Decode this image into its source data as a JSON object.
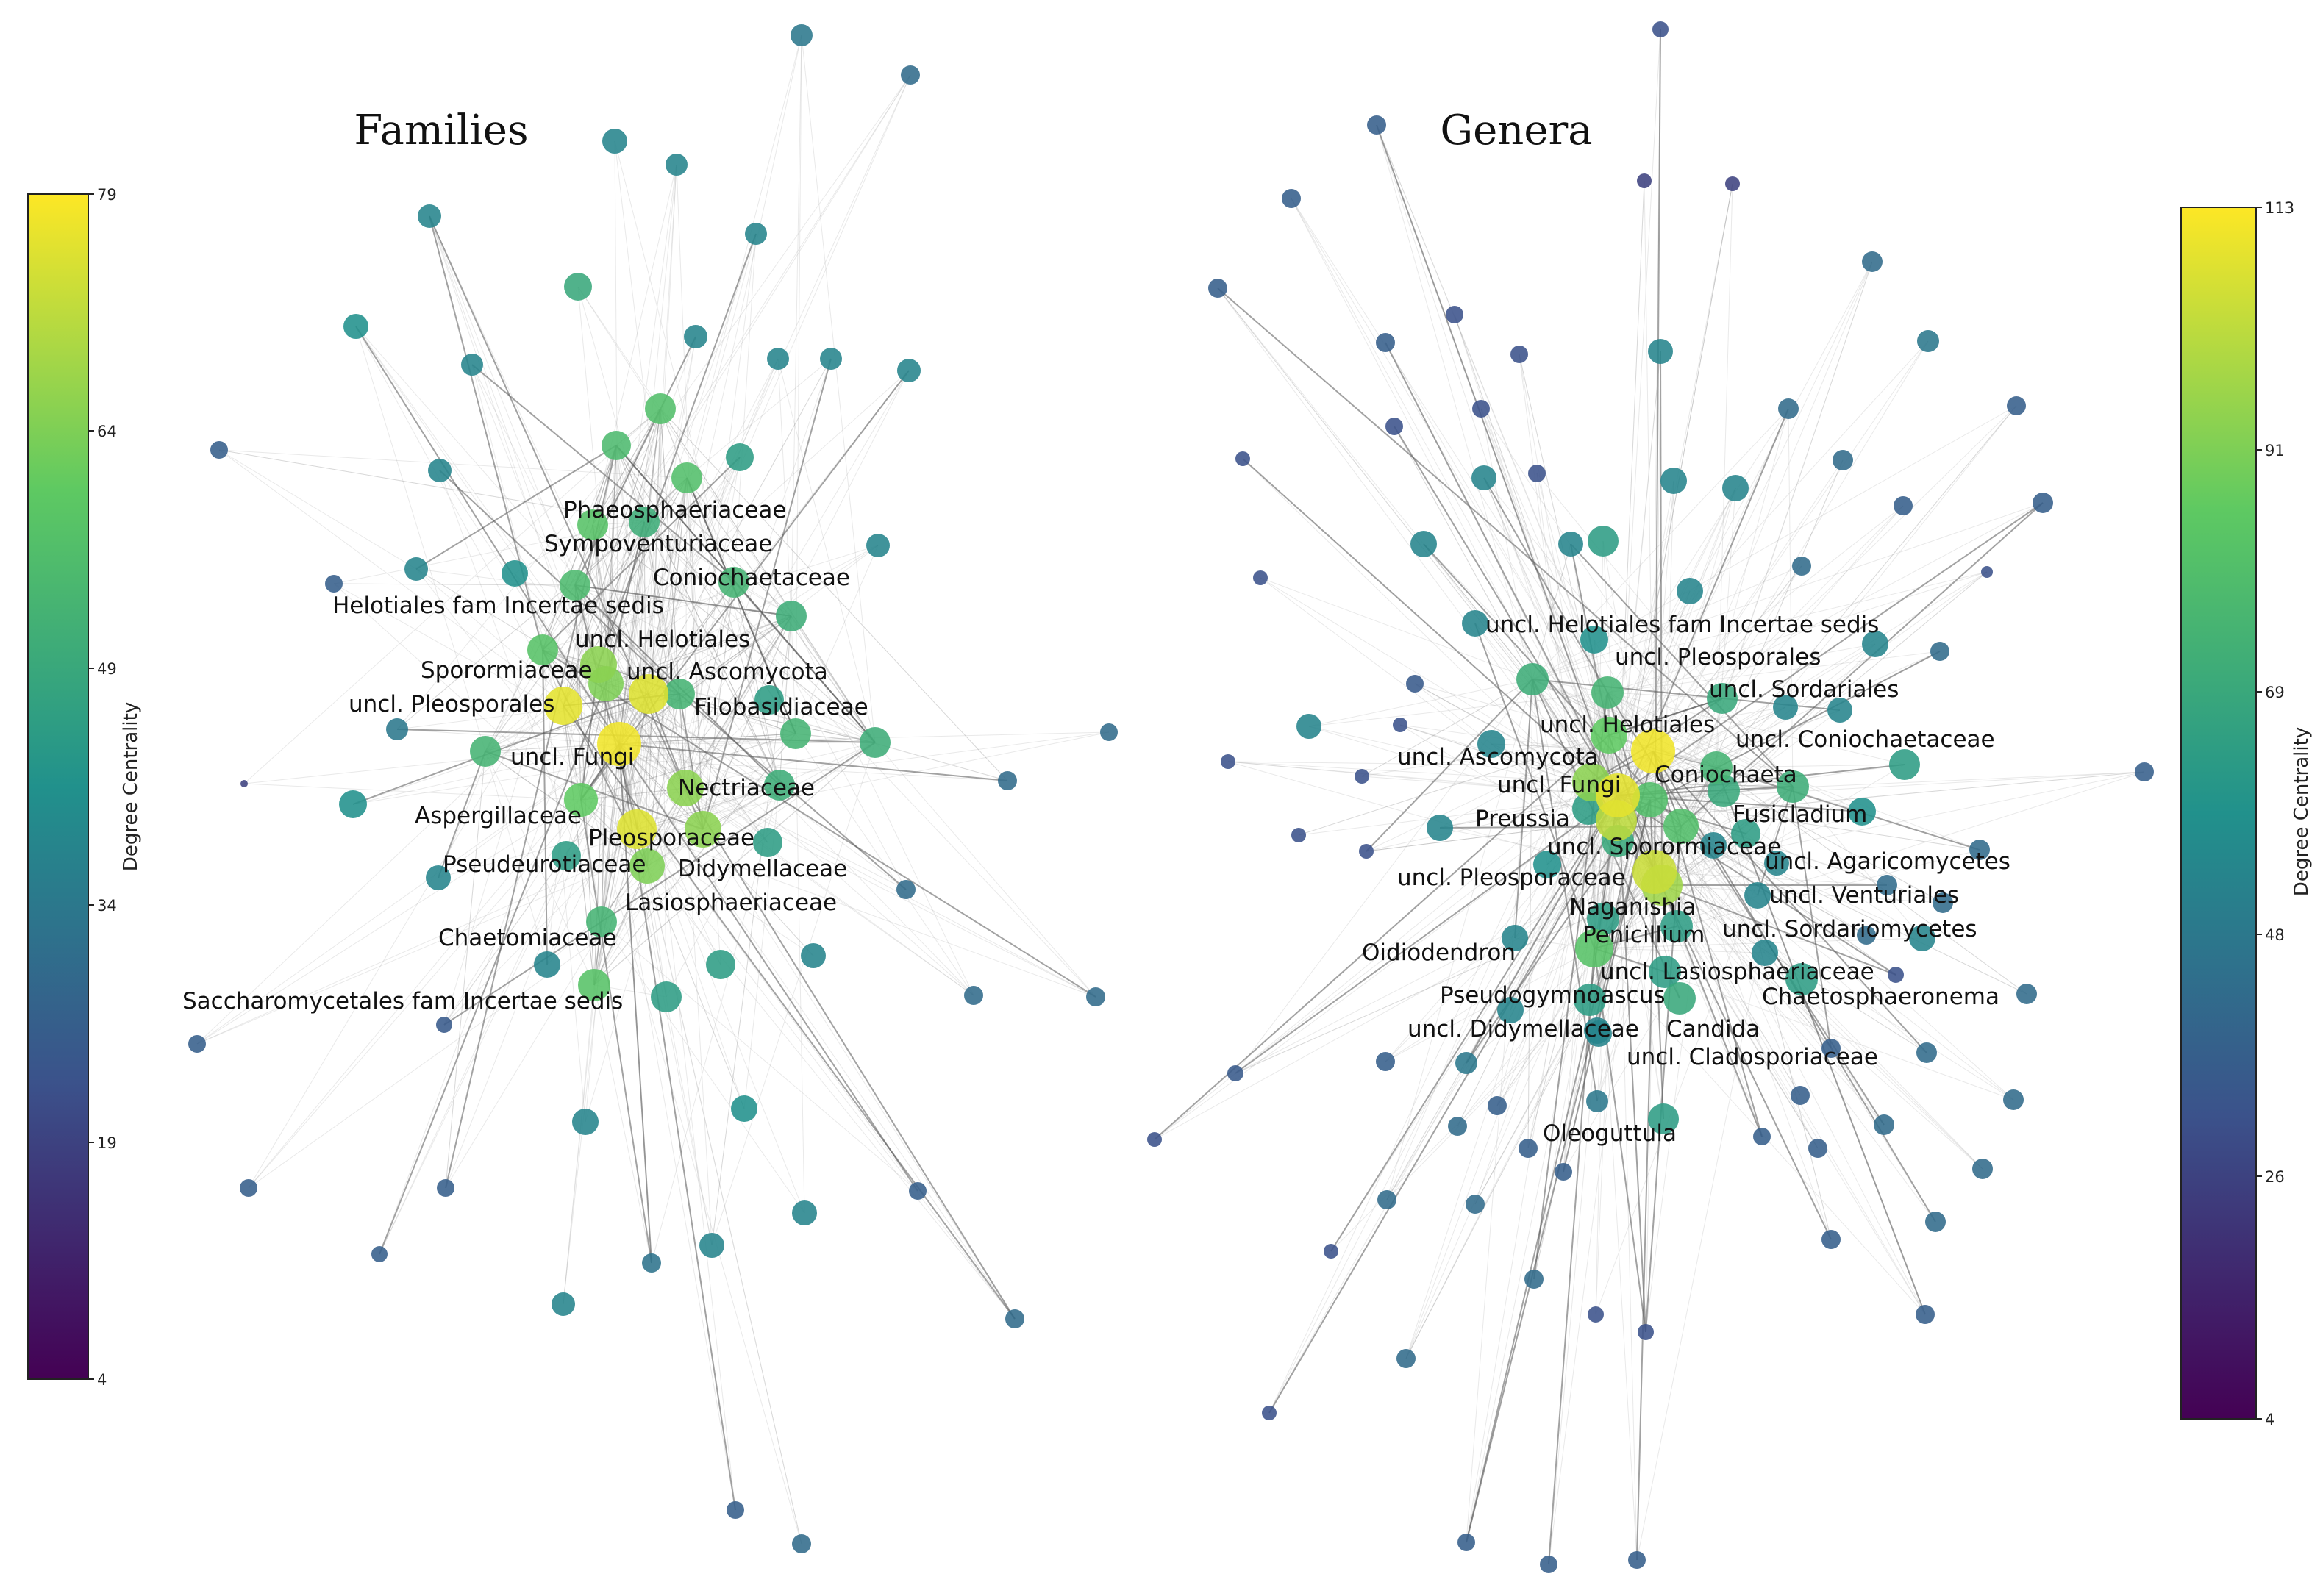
{
  "panels": [
    {
      "id": "families",
      "title": "Families",
      "colorbar": {
        "label": "Degree Centrality",
        "min": 4,
        "max": 79,
        "ticks": [
          "79",
          "64",
          "49",
          "34",
          "19",
          "4"
        ]
      },
      "labels": [
        "Phaeosphaeriaceae",
        "Sympoventuriaceae",
        "Coniochaetaceae",
        "Helotiales fam Incertae sedis",
        "uncl. Helotiales",
        "Sporormiaceae",
        "uncl. Ascomycota",
        "uncl. Pleosporales",
        "Filobasidiaceae",
        "uncl. Fungi",
        "Nectriaceae",
        "Aspergillaceae",
        "Pleosporaceae",
        "Pseudeurotiaceae",
        "Didymellaceae",
        "Lasiosphaeriaceae",
        "Chaetomiaceae",
        "Saccharomycetales fam Incertae sedis"
      ]
    },
    {
      "id": "genera",
      "title": "Genera",
      "colorbar": {
        "label": "Degree Centrality",
        "min": 4,
        "max": 113,
        "ticks": [
          "113",
          "91",
          "69",
          "48",
          "26",
          "4"
        ]
      },
      "labels": [
        "uncl. Helotiales fam Incertae sedis",
        "uncl. Pleosporales",
        "uncl. Sordariales",
        "uncl. Helotiales",
        "uncl. Coniochaetaceae",
        "uncl. Ascomycota",
        "Coniochaeta",
        "uncl. Fungi",
        "Fusicladium",
        "Preussia",
        "uncl. Sporormiaceae",
        "uncl. Agaricomycetes",
        "uncl. Pleosporaceae",
        "uncl. Venturiales",
        "Naganishia",
        "Penicillium",
        "uncl. Sordariomycetes",
        "Oidiodendron",
        "uncl. Lasiosphaeriaceae",
        "Pseudogymnoascus",
        "Chaetosphaeronema",
        "uncl. Didymellaceae",
        "Candida",
        "uncl. Cladosporiaceae",
        "Oleoguttula"
      ]
    }
  ],
  "colormap": [
    "#440154",
    "#3b528b",
    "#21918c",
    "#5ec962",
    "#fde725"
  ]
}
